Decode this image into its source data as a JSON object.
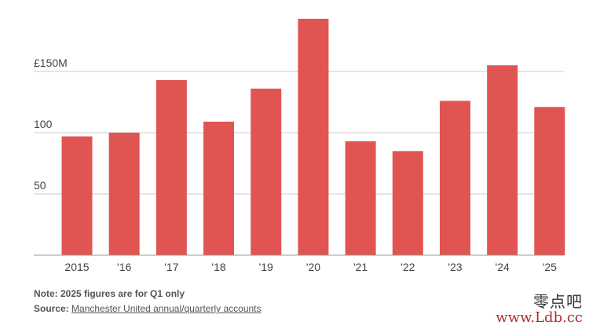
{
  "chart_data": {
    "type": "bar",
    "categories": [
      "2015",
      "'16",
      "'17",
      "'18",
      "'19",
      "'20",
      "'21",
      "'22",
      "'23",
      "'24",
      "'25"
    ],
    "values": [
      97,
      100,
      143,
      109,
      136,
      193,
      93,
      85,
      126,
      155,
      121
    ],
    "y_ticks": [
      50,
      100,
      150
    ],
    "y_tick_labels": [
      "50",
      "100",
      "£150M"
    ],
    "ylim": [
      0,
      200
    ],
    "grid": true,
    "bar_color": "#e05552",
    "grid_color": "#cccccc",
    "title": "",
    "xlabel": "",
    "ylabel": ""
  },
  "footer": {
    "note": "Note: 2025 figures are for Q1 only",
    "source_label": "Source:",
    "source_link": "Manchester United annual/quarterly accounts"
  },
  "watermark": {
    "cn_text": "零点吧",
    "url": "www.Ldb.cc"
  }
}
